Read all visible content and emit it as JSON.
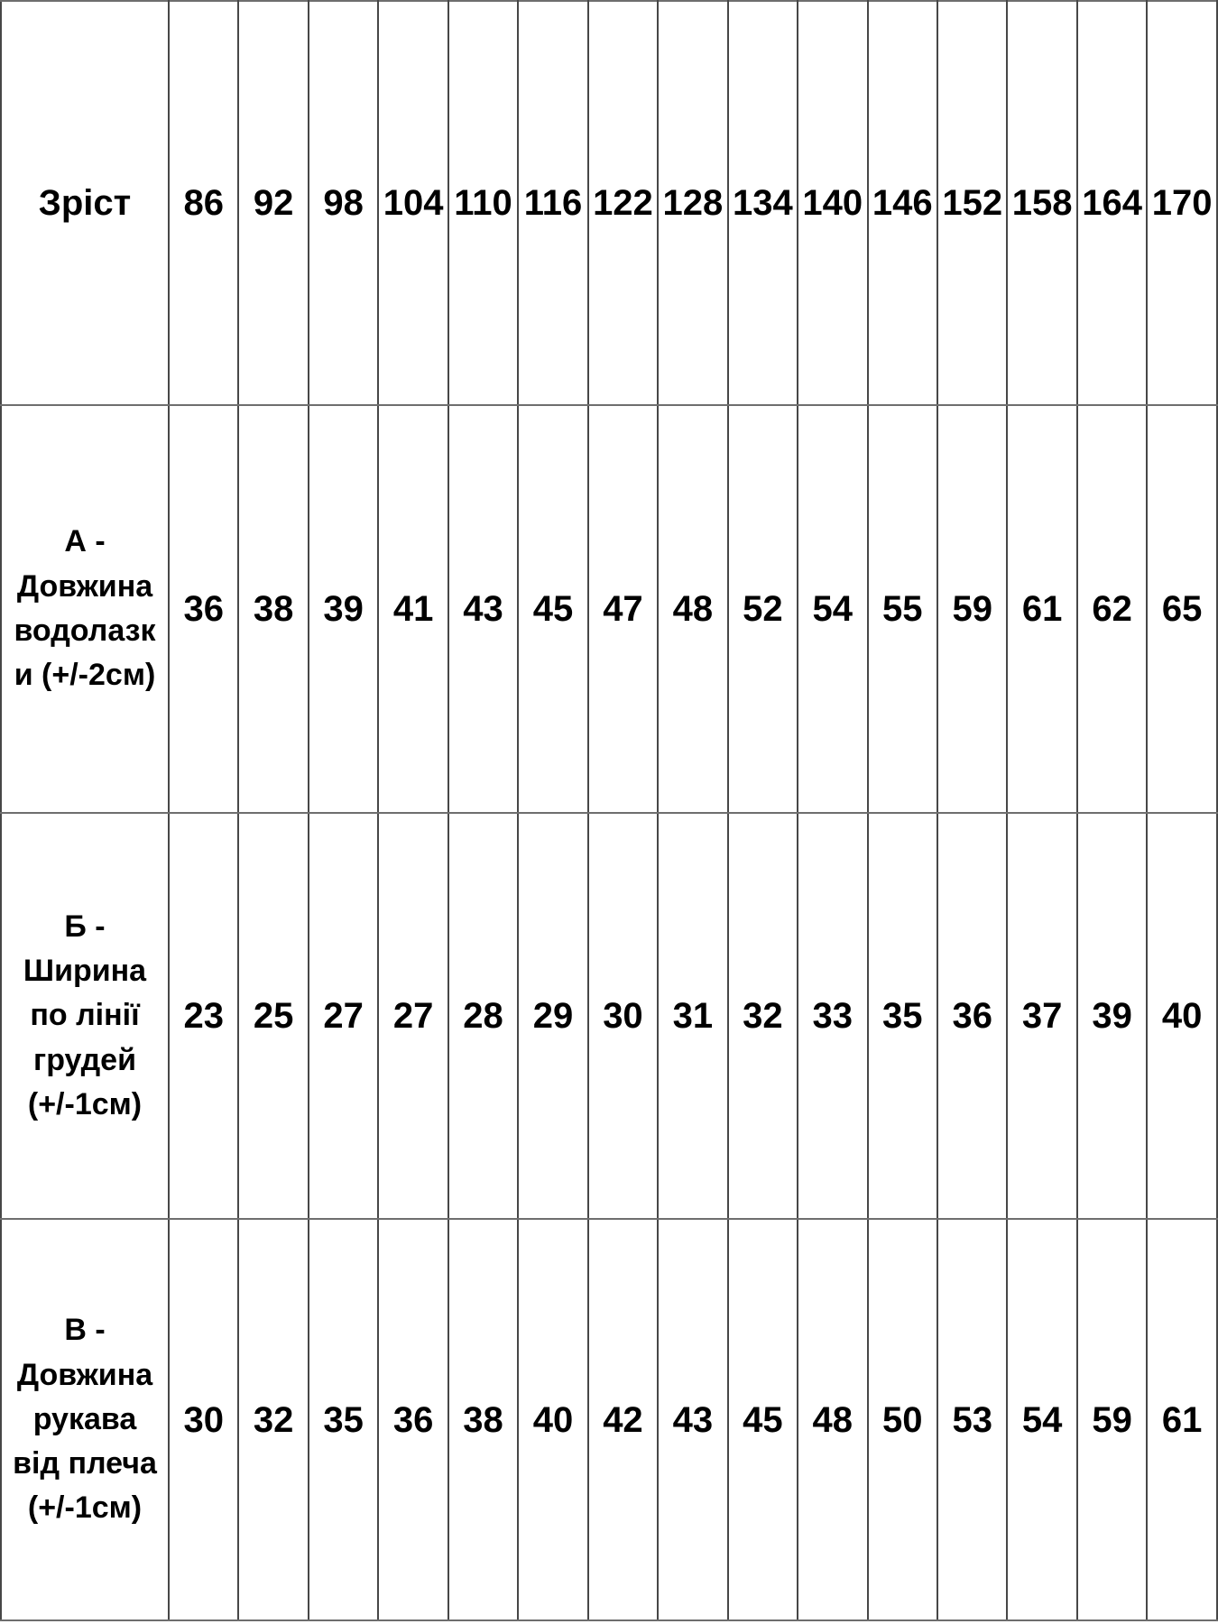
{
  "colors": {
    "background": "#ffffff",
    "text": "#000000",
    "grid_horizontal": "#6e6e6e",
    "grid_vertical": "#474747"
  },
  "size_chart": {
    "rows": [
      {
        "label": "Зріст",
        "values": [
          "86",
          "92",
          "98",
          "104",
          "110",
          "116",
          "122",
          "128",
          "134",
          "140",
          "146",
          "152",
          "158",
          "164",
          "170"
        ]
      },
      {
        "label": "А -\nДовжина\nводолазк\nи (+/-2см)",
        "values": [
          "36",
          "38",
          "39",
          "41",
          "43",
          "45",
          "47",
          "48",
          "52",
          "54",
          "55",
          "59",
          "61",
          "62",
          "65"
        ]
      },
      {
        "label": "Б -\nШирина\nпо лінії\nгрудей\n(+/-1см)",
        "values": [
          "23",
          "25",
          "27",
          "27",
          "28",
          "29",
          "30",
          "31",
          "32",
          "33",
          "35",
          "36",
          "37",
          "39",
          "40"
        ]
      },
      {
        "label": "В -\nДовжина\nрукава\nвід плеча\n(+/-1см)",
        "values": [
          "30",
          "32",
          "35",
          "36",
          "38",
          "40",
          "42",
          "43",
          "45",
          "48",
          "50",
          "53",
          "54",
          "59",
          "61"
        ]
      }
    ]
  }
}
